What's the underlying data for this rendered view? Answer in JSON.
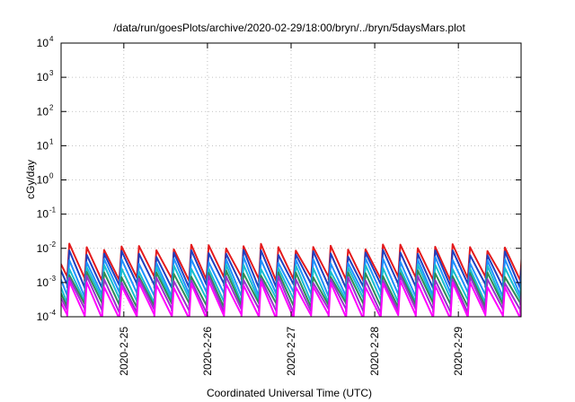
{
  "chart_data": {
    "type": "line",
    "title": "/data/run/goesPlots/archive/2020-02-29/18:00/bryn/../bryn/5daysMars.plot",
    "xlabel": "Coordinated Universal Time (UTC)",
    "ylabel": "cGy/day",
    "yscale": "log",
    "ylim": [
      0.0001,
      10000
    ],
    "y_ticks": [
      {
        "base": "10",
        "exp": "-4",
        "value": 0.0001
      },
      {
        "base": "10",
        "exp": "-3",
        "value": 0.001
      },
      {
        "base": "10",
        "exp": "-2",
        "value": 0.01
      },
      {
        "base": "10",
        "exp": "-1",
        "value": 0.1
      },
      {
        "base": "10",
        "exp": "0",
        "value": 1
      },
      {
        "base": "10",
        "exp": "1",
        "value": 10
      },
      {
        "base": "10",
        "exp": "2",
        "value": 100
      },
      {
        "base": "10",
        "exp": "3",
        "value": 1000
      },
      {
        "base": "10",
        "exp": "4",
        "value": 10000
      }
    ],
    "xlim": [
      "2020-02-24 06:00",
      "2020-02-29 18:00"
    ],
    "x_ticks": [
      {
        "label": "2020-2-25",
        "value": "2020-02-25 00:00"
      },
      {
        "label": "2020-2-26",
        "value": "2020-02-26 00:00"
      },
      {
        "label": "2020-2-27",
        "value": "2020-02-27 00:00"
      },
      {
        "label": "2020-2-28",
        "value": "2020-02-28 00:00"
      },
      {
        "label": "2020-2-29",
        "value": "2020-02-29 00:00"
      }
    ],
    "grid": true,
    "legend": "none",
    "sawtooth_period_hours": 5,
    "series": [
      {
        "color": "#e41a1c",
        "peak": 0.011,
        "trough": 0.0013
      },
      {
        "color": "#1f3fbf",
        "peak": 0.0075,
        "trough": 0.0008
      },
      {
        "color": "#1e90ff",
        "peak": 0.0045,
        "trough": 0.00045
      },
      {
        "color": "#17becf",
        "peak": 0.0028,
        "trough": 0.0003
      },
      {
        "color": "#2e8b57",
        "peak": 0.0018,
        "trough": 0.00022
      },
      {
        "color": "#9932cc",
        "peak": 0.0013,
        "trough": 0.00015
      },
      {
        "color": "#ff00ff",
        "peak": 0.0009,
        "trough": 0.0001
      }
    ]
  }
}
